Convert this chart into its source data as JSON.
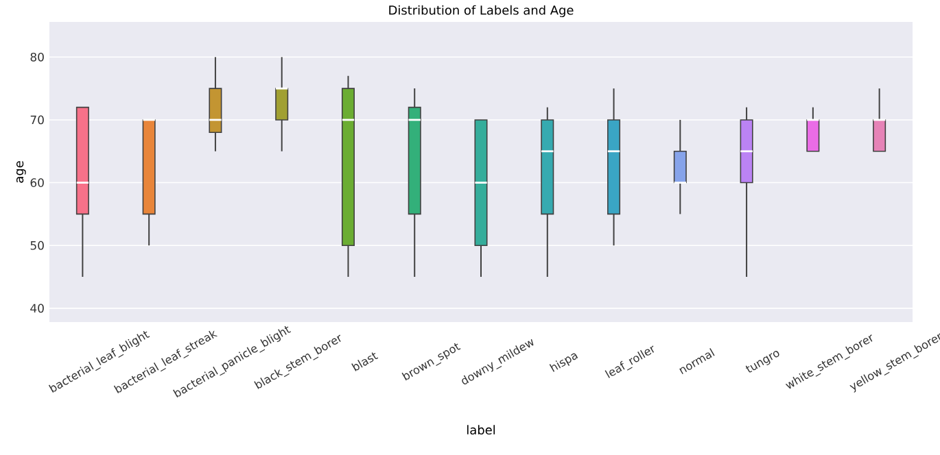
{
  "chart_data": {
    "type": "box",
    "title": "Distribution of Labels and Age",
    "xlabel": "label",
    "ylabel": "age",
    "categories": [
      "bacterial_leaf_blight",
      "bacterial_leaf_streak",
      "bacterial_panicle_blight",
      "black_stem_borer",
      "blast",
      "brown_spot",
      "downy_mildew",
      "hispa",
      "leaf_roller",
      "normal",
      "tungro",
      "white_stem_borer",
      "yellow_stem_borer"
    ],
    "colors": [
      "#f77189",
      "#e8853a",
      "#c39532",
      "#a1a032",
      "#6bad32",
      "#33b07a",
      "#35ad9b",
      "#36aab0",
      "#3aa5c4",
      "#86a3ea",
      "#bb83f4",
      "#ea6ce6",
      "#e683b7"
    ],
    "boxes": [
      {
        "low": 45,
        "q1": 55,
        "median": 60,
        "q3": 72,
        "high": 72
      },
      {
        "low": 50,
        "q1": 55,
        "median": 70,
        "q3": 70,
        "high": 70
      },
      {
        "low": 65,
        "q1": 68,
        "median": 70,
        "q3": 75,
        "high": 80
      },
      {
        "low": 65,
        "q1": 70,
        "median": 75,
        "q3": 75,
        "high": 80
      },
      {
        "low": 45,
        "q1": 50,
        "median": 70,
        "q3": 75,
        "high": 77
      },
      {
        "low": 45,
        "q1": 55,
        "median": 70,
        "q3": 72,
        "high": 75
      },
      {
        "low": 45,
        "q1": 50,
        "median": 60,
        "q3": 70,
        "high": 70
      },
      {
        "low": 45,
        "q1": 55,
        "median": 65,
        "q3": 70,
        "high": 72
      },
      {
        "low": 50,
        "q1": 55,
        "median": 65,
        "q3": 70,
        "high": 75
      },
      {
        "low": 55,
        "q1": 60,
        "median": 60,
        "q3": 65,
        "high": 70
      },
      {
        "low": 45,
        "q1": 60,
        "median": 65,
        "q3": 70,
        "high": 72
      },
      {
        "low": 65,
        "q1": 65,
        "median": 70,
        "q3": 70,
        "high": 72
      },
      {
        "low": 65,
        "q1": 65,
        "median": 70,
        "q3": 70,
        "high": 75
      }
    ],
    "ylim": [
      37.8,
      85.6
    ],
    "yticks": [
      40,
      50,
      60,
      70,
      80
    ],
    "grid": "y"
  }
}
